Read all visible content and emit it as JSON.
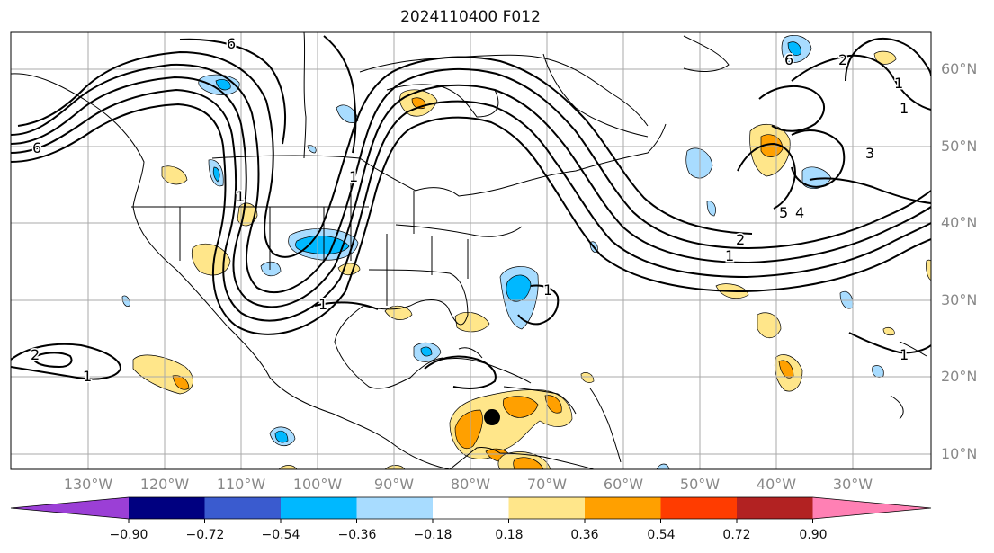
{
  "title": "2024110400 F012",
  "lat_labels": [
    "60°N",
    "50°N",
    "40°N",
    "30°N",
    "20°N",
    "10°N"
  ],
  "lon_labels": [
    "130°W",
    "120°W",
    "110°W",
    "100°W",
    "90°W",
    "80°W",
    "70°W",
    "60°W",
    "50°W",
    "40°W",
    "30°W"
  ],
  "colorbar": {
    "ticks": [
      "−0.90",
      "−0.72",
      "−0.54",
      "−0.36",
      "−0.18",
      "0.18",
      "0.36",
      "0.54",
      "0.72",
      "0.90"
    ],
    "colors": [
      "#9b3fd6",
      "#000080",
      "#3a5bcf",
      "#00b8ff",
      "#a8dcff",
      "#ffffff",
      "#ffe68a",
      "#ffa000",
      "#ff3c00",
      "#b22222",
      "#ff80b4"
    ]
  },
  "contour_labels": [
    "6",
    "6",
    "1",
    "1",
    "2",
    "1",
    "1",
    "1",
    "6",
    "2",
    "1",
    "1",
    "5",
    "4",
    "3",
    "2",
    "1",
    "1"
  ],
  "marker": "storm-center"
}
